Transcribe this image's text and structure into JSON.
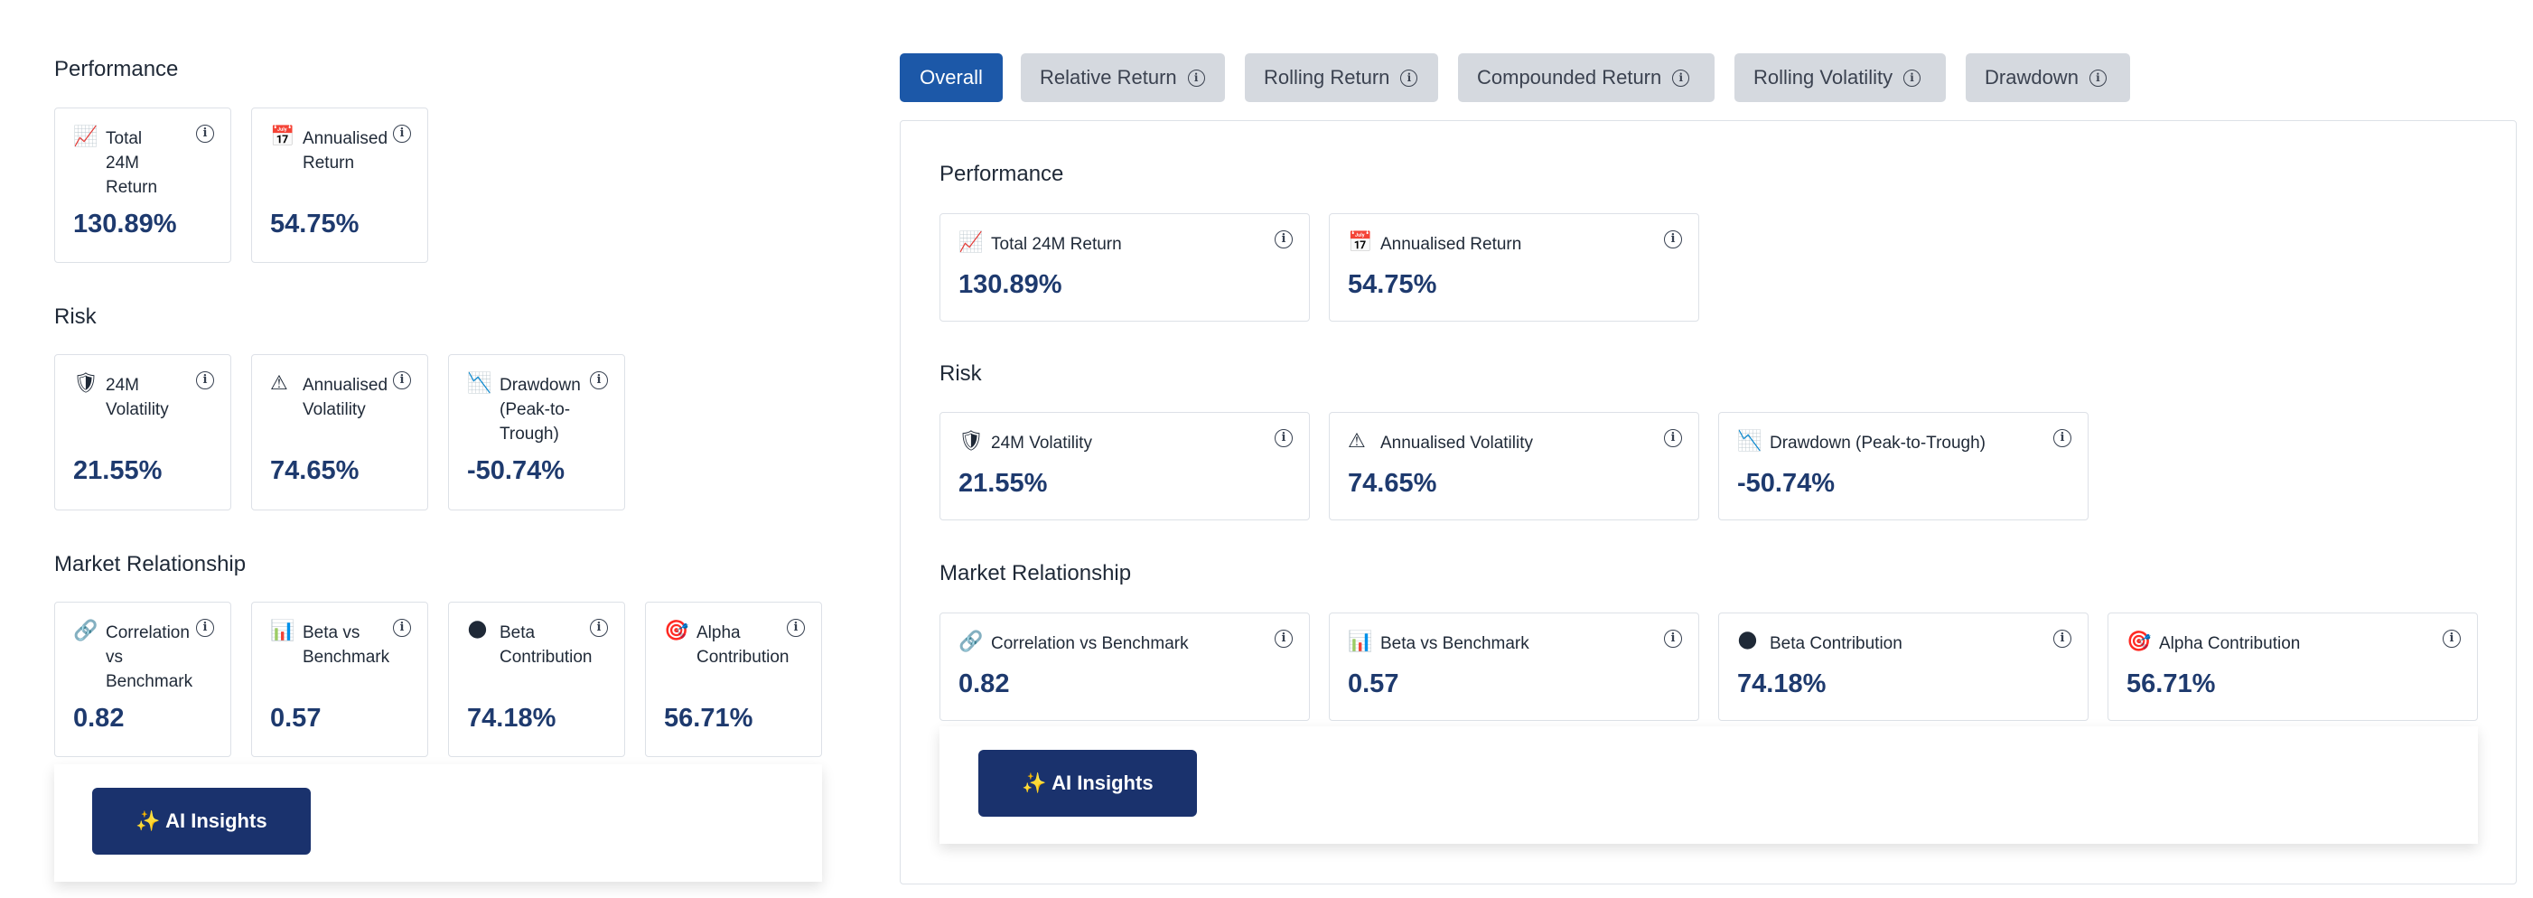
{
  "tabs": [
    {
      "label": "Overall",
      "active": true,
      "info": false
    },
    {
      "label": "Relative Return",
      "active": false,
      "info": true
    },
    {
      "label": "Rolling Return",
      "active": false,
      "info": true
    },
    {
      "label": "Compounded Return",
      "active": false,
      "info": true
    },
    {
      "label": "Rolling Volatility",
      "active": false,
      "info": true
    },
    {
      "label": "Drawdown",
      "active": false,
      "info": true
    }
  ],
  "info_glyph": "i",
  "left": {
    "performance": {
      "title": "Performance",
      "cards": [
        {
          "icon": "chart-up-icon",
          "emoji": "📈",
          "label": "Total 24M Return",
          "value": "130.89%"
        },
        {
          "icon": "calendar-icon",
          "emoji": "📅",
          "label": "Annualised Return",
          "value": "54.75%"
        }
      ]
    },
    "risk": {
      "title": "Risk",
      "cards": [
        {
          "icon": "shield-icon",
          "emoji": "🛡",
          "label": "24M Volatility",
          "value": "21.55%"
        },
        {
          "icon": "warning-icon",
          "emoji": "⚠",
          "label": "Annualised Volatility",
          "value": "74.65%"
        },
        {
          "icon": "chart-down-icon",
          "emoji": "📉",
          "label": "Drawdown (Peak-to-Trough)",
          "value": "-50.74%"
        }
      ]
    },
    "market": {
      "title": "Market Relationship",
      "cards": [
        {
          "icon": "link-icon",
          "emoji": "🔗",
          "label": "Correlation vs Benchmark",
          "value": "0.82"
        },
        {
          "icon": "bar-chart-icon",
          "emoji": "📊",
          "label": "Beta vs Benchmark",
          "value": "0.57"
        },
        {
          "icon": "globe-icon",
          "emoji": "🌑",
          "label": "Beta Contribution",
          "value": "74.18%"
        },
        {
          "icon": "target-icon",
          "emoji": "🎯",
          "label": "Alpha Contribution",
          "value": "56.71%"
        }
      ]
    },
    "ai_button": "✨ AI Insights"
  },
  "right": {
    "performance": {
      "title": "Performance"
    },
    "risk": {
      "title": "Risk"
    },
    "market": {
      "title": "Market Relationship"
    },
    "ai_button": "✨ AI Insights"
  }
}
